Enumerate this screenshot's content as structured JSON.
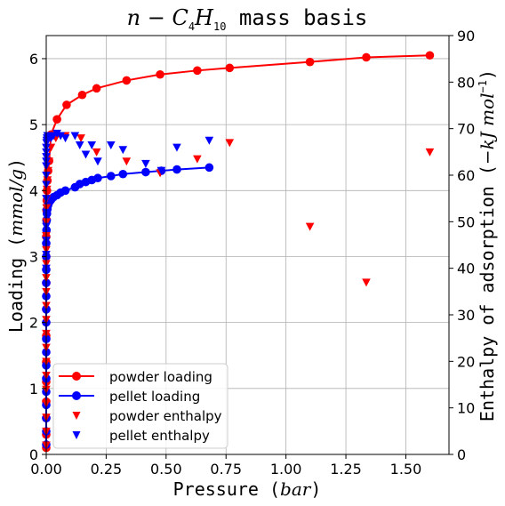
{
  "chart_data": {
    "type": "scatter",
    "title_parts": [
      "n",
      " − ",
      "C",
      "4",
      "H",
      "10",
      " mass basis"
    ],
    "xlabel_parts": [
      "Pressure (",
      "bar",
      ")"
    ],
    "ylabel_parts": [
      "Loading (",
      "mmol/g",
      ")"
    ],
    "y2label_parts": [
      "Enthalpy of adsorption (",
      "−kJ mol",
      "−1",
      ")"
    ],
    "xlim": [
      0,
      1.68
    ],
    "ylim": [
      0,
      6.35
    ],
    "y2lim": [
      0,
      90
    ],
    "xticks": [
      {
        "v": 0.0,
        "label": "0.00"
      },
      {
        "v": 0.25,
        "label": "0.25"
      },
      {
        "v": 0.5,
        "label": "0.50"
      },
      {
        "v": 0.75,
        "label": "0.75"
      },
      {
        "v": 1.0,
        "label": "1.00"
      },
      {
        "v": 1.25,
        "label": "1.25"
      },
      {
        "v": 1.5,
        "label": "1.50"
      }
    ],
    "yticks": [
      {
        "v": 0,
        "label": "0"
      },
      {
        "v": 1,
        "label": "1"
      },
      {
        "v": 2,
        "label": "2"
      },
      {
        "v": 3,
        "label": "3"
      },
      {
        "v": 4,
        "label": "4"
      },
      {
        "v": 5,
        "label": "5"
      },
      {
        "v": 6,
        "label": "6"
      }
    ],
    "y2ticks": [
      {
        "v": 0,
        "label": "0"
      },
      {
        "v": 10,
        "label": "10"
      },
      {
        "v": 20,
        "label": "20"
      },
      {
        "v": 30,
        "label": "30"
      },
      {
        "v": 40,
        "label": "40"
      },
      {
        "v": 50,
        "label": "50"
      },
      {
        "v": 60,
        "label": "60"
      },
      {
        "v": 70,
        "label": "70"
      },
      {
        "v": 80,
        "label": "80"
      },
      {
        "v": 90,
        "label": "90"
      }
    ],
    "grid": true,
    "legend_position": "lower-left",
    "series": [
      {
        "name": "powder loading",
        "kind": "line-marker",
        "axis": "left",
        "color": "#ff0000",
        "x": [
          0.0,
          0.0,
          0.0,
          0.0,
          0.0,
          0.0,
          0.0,
          0.0,
          0.0,
          0.0,
          0.0,
          0.001,
          0.001,
          0.002,
          0.003,
          0.005,
          0.008,
          0.012,
          0.02,
          0.045,
          0.085,
          0.15,
          0.21,
          0.335,
          0.475,
          0.63,
          0.765,
          1.1,
          1.335,
          1.6
        ],
        "y": [
          0.1,
          0.3,
          0.55,
          0.8,
          1.1,
          1.4,
          1.8,
          2.2,
          2.6,
          3.0,
          3.3,
          3.55,
          3.7,
          3.85,
          4.0,
          4.15,
          4.3,
          4.45,
          4.85,
          5.08,
          5.3,
          5.45,
          5.55,
          5.67,
          5.76,
          5.82,
          5.86,
          5.95,
          6.02,
          6.05
        ]
      },
      {
        "name": "pellet loading",
        "kind": "line-marker",
        "axis": "left",
        "color": "#0000ff",
        "x": [
          0.0,
          0.0,
          0.0,
          0.0,
          0.0,
          0.0,
          0.0,
          0.0,
          0.0,
          0.0,
          0.0,
          0.0,
          0.0,
          0.0,
          0.0,
          0.0,
          0.001,
          0.002,
          0.003,
          0.005,
          0.008,
          0.012,
          0.02,
          0.03,
          0.045,
          0.06,
          0.08,
          0.12,
          0.14,
          0.165,
          0.19,
          0.215,
          0.27,
          0.32,
          0.415,
          0.48,
          0.545,
          0.68
        ],
        "y": [
          0.15,
          0.35,
          0.55,
          0.75,
          0.95,
          1.15,
          1.35,
          1.55,
          1.75,
          2.0,
          2.2,
          2.4,
          2.6,
          2.8,
          3.0,
          3.2,
          3.4,
          3.55,
          3.65,
          3.72,
          3.78,
          3.82,
          3.86,
          3.9,
          3.93,
          3.97,
          4.0,
          4.05,
          4.1,
          4.13,
          4.16,
          4.19,
          4.22,
          4.25,
          4.28,
          4.3,
          4.32,
          4.35
        ]
      },
      {
        "name": "powder enthalpy",
        "kind": "marker",
        "marker": "triangle-down",
        "axis": "right",
        "color": "#ff0000",
        "x": [
          0.0,
          0.0,
          0.0,
          0.0,
          0.0,
          0.0,
          0.0,
          0.0,
          0.0,
          0.0,
          0.0,
          0.0,
          0.0,
          0.0,
          0.0,
          0.0,
          0.001,
          0.001,
          0.002,
          0.003,
          0.005,
          0.008,
          0.012,
          0.02,
          0.04,
          0.08,
          0.145,
          0.21,
          0.335,
          0.475,
          0.63,
          0.765,
          1.1,
          1.335,
          1.6
        ],
        "y": [
          2,
          5,
          8,
          11,
          14,
          17,
          20,
          23,
          26,
          29,
          32,
          35,
          38,
          41,
          44,
          47,
          50,
          53,
          55,
          57,
          59,
          61,
          63,
          66,
          68,
          68.5,
          68,
          65,
          63,
          60.5,
          63.5,
          67,
          49,
          37,
          65
        ]
      },
      {
        "name": "pellet enthalpy",
        "kind": "marker",
        "marker": "triangle-down",
        "axis": "right",
        "color": "#0000ff",
        "x": [
          0.0,
          0.0,
          0.0,
          0.0,
          0.0,
          0.0,
          0.0,
          0.0,
          0.0,
          0.0,
          0.0,
          0.0,
          0.0,
          0.001,
          0.002,
          0.003,
          0.005,
          0.008,
          0.012,
          0.02,
          0.03,
          0.045,
          0.06,
          0.08,
          0.12,
          0.14,
          0.165,
          0.19,
          0.215,
          0.27,
          0.32,
          0.415,
          0.48,
          0.545,
          0.68
        ],
        "y": [
          40,
          43,
          46,
          49,
          52,
          55,
          58,
          60,
          62,
          63,
          64,
          65,
          66,
          67,
          67.5,
          68,
          68.5,
          68.5,
          68.5,
          68,
          68.5,
          69,
          68.5,
          68,
          68.5,
          66.5,
          64.5,
          66.5,
          63,
          66.5,
          65.5,
          62.5,
          61,
          66,
          67.5
        ]
      }
    ]
  }
}
